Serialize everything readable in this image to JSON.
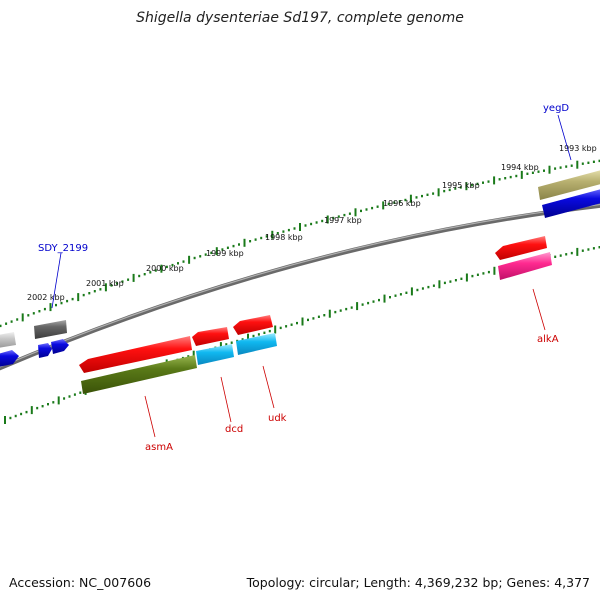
{
  "title": "Shigella dysenteriae Sd197, complete genome",
  "footer": {
    "accession": "Accession: NC_007606",
    "topology": "Topology: circular; Length: 4,369,232 bp; Genes: 4,377"
  },
  "scale_labels": [
    "2002 kbp",
    "2001 kbp",
    "2000 kbp",
    "1999 kbp",
    "1998 kbp",
    "1997 kbp",
    "1996 kbp",
    "1995 kbp",
    "1994 kbp",
    "1993 kbp"
  ],
  "gene_labels": {
    "SDY_2199": "SDY_2199",
    "yegD": "yegD",
    "asmA": "asmA",
    "dcd": "dcd",
    "udk": "udk",
    "alkA": "alkA"
  },
  "colors": {
    "forward_label": "#0000cc",
    "reverse_label": "#cc0000",
    "tick": "#1a7a1a",
    "backbone": "#777777",
    "cds_red": "#ff1010",
    "cds_blue": "#0a0ae0",
    "cds_cyan": "#10b8f0",
    "cds_pink": "#ff2a90",
    "cds_olive": "#5a7a18",
    "cds_khaki": "#b8b070",
    "cds_gray": "#666666",
    "cds_lightgray": "#c8c8c8"
  }
}
